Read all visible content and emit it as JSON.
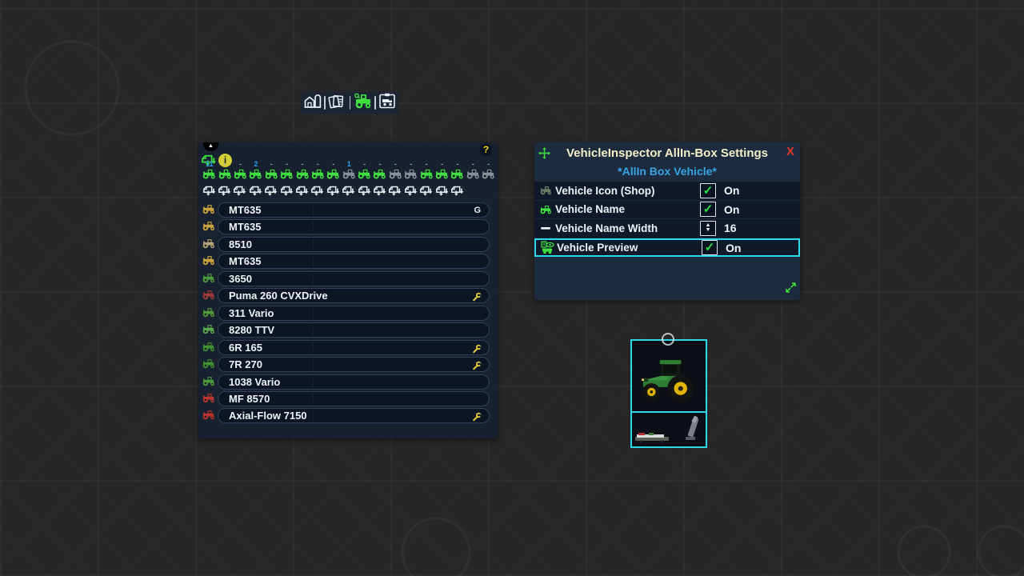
{
  "colors": {
    "accent_cyan": "#2bd9e8",
    "icon_green": "#3fe03f",
    "icon_gray": "#8a9099",
    "count_blue": "#2e9ae8",
    "count_dash": "#8fa3b8",
    "wrench_yellow": "#e6cc3e",
    "title_cream": "#f6eec9",
    "subtitle_blue": "#36a5e2",
    "close_red": "#e0352b"
  },
  "toolbar": {
    "icons": [
      {
        "name": "farm-icon",
        "active": false
      },
      {
        "name": "finance-cards-icon",
        "active": false
      },
      {
        "name": "tractor-inspect-icon",
        "active": true
      },
      {
        "name": "vehicle-clipboard-icon",
        "active": false
      }
    ]
  },
  "left_panel": {
    "collapse_glyph": "▲",
    "info_glyph": "i",
    "help_glyph": "?",
    "categories": [
      {
        "count": "11",
        "state": "green"
      },
      {
        "count": "-",
        "state": "green"
      },
      {
        "count": "-",
        "state": "green"
      },
      {
        "count": "2",
        "state": "green"
      },
      {
        "count": "-",
        "state": "green"
      },
      {
        "count": "-",
        "state": "green"
      },
      {
        "count": "-",
        "state": "green"
      },
      {
        "count": "-",
        "state": "green"
      },
      {
        "count": "-",
        "state": "green"
      },
      {
        "count": "1",
        "state": "gray"
      },
      {
        "count": "-",
        "state": "green"
      },
      {
        "count": "-",
        "state": "green"
      },
      {
        "count": "-",
        "state": "gray"
      },
      {
        "count": "-",
        "state": "gray"
      },
      {
        "count": "-",
        "state": "green"
      },
      {
        "count": "-",
        "state": "green"
      },
      {
        "count": "-",
        "state": "green"
      },
      {
        "count": "-",
        "state": "gray"
      },
      {
        "count": "-",
        "state": "gray"
      }
    ],
    "filter_icon_count": 17,
    "vehicles": [
      {
        "name": "MT635",
        "badge": "G",
        "wrench": false,
        "color": "#c9a43e"
      },
      {
        "name": "MT635",
        "badge": "",
        "wrench": false,
        "color": "#c9a43e"
      },
      {
        "name": "8510",
        "badge": "",
        "wrench": false,
        "color": "#b3a477"
      },
      {
        "name": "MT635",
        "badge": "",
        "wrench": false,
        "color": "#c9a43e"
      },
      {
        "name": "3650",
        "badge": "",
        "wrench": false,
        "color": "#4d9a3c"
      },
      {
        "name": "Puma 260 CVXDrive",
        "badge": "",
        "wrench": true,
        "color": "#a03a3a"
      },
      {
        "name": "311 Vario",
        "badge": "",
        "wrench": false,
        "color": "#4d9a3c"
      },
      {
        "name": "8280 TTV",
        "badge": "",
        "wrench": false,
        "color": "#59a74a"
      },
      {
        "name": "6R 165",
        "badge": "",
        "wrench": true,
        "color": "#3f8f33"
      },
      {
        "name": "7R 270",
        "badge": "",
        "wrench": true,
        "color": "#3f8f33"
      },
      {
        "name": "1038 Vario",
        "badge": "",
        "wrench": false,
        "color": "#4d9a3c"
      },
      {
        "name": "MF 8570",
        "badge": "",
        "wrench": false,
        "color": "#bb3430"
      },
      {
        "name": "Axial-Flow 7150",
        "badge": "",
        "wrench": true,
        "color": "#bb3430"
      }
    ]
  },
  "settings_panel": {
    "title": "VehicleInspector AllIn-Box Settings",
    "subtitle": "*AllIn Box Vehicle*",
    "close_glyph": "X",
    "rows": [
      {
        "icon": "vehicle-thumb-icon",
        "label": "Vehicle Icon (Shop)",
        "control": "checkbox",
        "value": "On",
        "highlighted": false
      },
      {
        "icon": "tractor-green-icon",
        "label": "Vehicle Name",
        "control": "checkbox",
        "value": "On",
        "highlighted": false
      },
      {
        "icon": "dash-icon",
        "label": "Vehicle Name Width",
        "control": "stepper",
        "value": "16",
        "highlighted": false
      },
      {
        "icon": "vehicle-preview-icon",
        "label": "Vehicle Preview",
        "control": "checkbox",
        "value": "On",
        "highlighted": true
      }
    ]
  }
}
